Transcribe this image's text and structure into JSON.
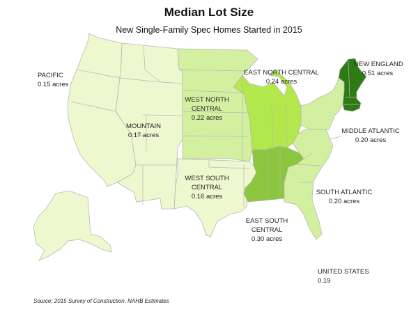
{
  "title": "Median Lot Size",
  "subtitle": "New Single-Family Spec Homes Started in 2015",
  "source": "Source: 2015 Survey of Construction, NAHB Estimates",
  "colors": {
    "light": "#eef8cf",
    "lightGreen": "#d3f0a0",
    "mediumGreen": "#b2e84c",
    "green": "#8bc63e",
    "darkGreen": "#2e7a14",
    "stateLine": "#b7b7b7"
  },
  "regions": [
    {
      "id": "pacific",
      "name": "PACIFIC",
      "value": "0.15 acres",
      "color": "#eef8cf"
    },
    {
      "id": "mountain",
      "name": "MOUNTAIN",
      "value": "0.17 acres",
      "color": "#eef8cf"
    },
    {
      "id": "west-north-central",
      "name": "WEST NORTH\nCENTRAL",
      "value": "0.22 acres",
      "color": "#d3f0a0"
    },
    {
      "id": "east-north-central",
      "name": "EAST NORTH CENTRAL",
      "value": "0.24 acres",
      "color": "#b2e84c"
    },
    {
      "id": "new-england",
      "name": "NEW ENGLAND",
      "value": "0.51 acres",
      "color": "#2e7a14"
    },
    {
      "id": "middle-atlantic",
      "name": "MIDDLE ATLANTIC",
      "value": "0.20 acres",
      "color": "#d3f0a0"
    },
    {
      "id": "south-atlantic",
      "name": "SOUTH ATLANTIC",
      "value": "0.20 acres",
      "color": "#d3f0a0"
    },
    {
      "id": "east-south-central",
      "name": "EAST SOUTH\nCENTRAL",
      "value": "0.30 acres",
      "color": "#8bc63e"
    },
    {
      "id": "west-south-central",
      "name": "WEST SOUTH\nCENTRAL",
      "value": "0.16 acres",
      "color": "#eef8cf"
    }
  ],
  "national": {
    "name": "UNITED STATES",
    "value": "0.19"
  }
}
